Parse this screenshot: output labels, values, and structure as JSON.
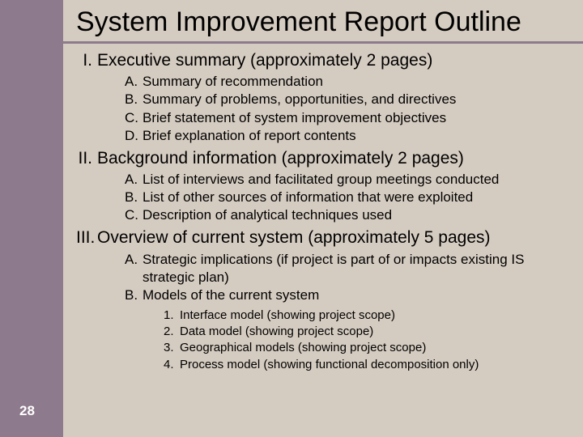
{
  "colors": {
    "sidebar": "#8d7a8c",
    "slide_bg": "#d5ccc1",
    "title_underline": "#8d7a8c",
    "text": "#000000",
    "page_number": "#ffffff"
  },
  "fonts": {
    "title_size": 34,
    "level1_size": 21,
    "level2_size": 17,
    "level3_size": 15
  },
  "page_number": "28",
  "title": "System Improvement Report Outline",
  "outline": [
    {
      "marker": "I.",
      "text": "Executive summary (approximately 2 pages)",
      "children": [
        {
          "marker": "A.",
          "text": "Summary of recommendation"
        },
        {
          "marker": "B.",
          "text": "Summary of problems, opportunities, and directives"
        },
        {
          "marker": "C.",
          "text": "Brief statement of system improvement objectives"
        },
        {
          "marker": "D.",
          "text": "Brief explanation of report contents"
        }
      ]
    },
    {
      "marker": "II.",
      "text": "Background information (approximately 2 pages)",
      "children": [
        {
          "marker": "A.",
          "text": "List of interviews and facilitated group meetings conducted"
        },
        {
          "marker": "B.",
          "text": "List of other sources of information that were exploited"
        },
        {
          "marker": "C.",
          "text": "Description of analytical techniques used"
        }
      ]
    },
    {
      "marker": "III.",
      "text": "Overview of current system (approximately 5 pages)",
      "children": [
        {
          "marker": "A.",
          "text": "Strategic implications (if project is part of or impacts existing IS strategic plan)"
        },
        {
          "marker": "B.",
          "text": "Models of the current system",
          "children": [
            {
              "marker": "1.",
              "text": "Interface model (showing project scope)"
            },
            {
              "marker": "2.",
              "text": "Data model (showing project scope)"
            },
            {
              "marker": "3.",
              "text": "Geographical models (showing project scope)"
            },
            {
              "marker": "4.",
              "text": "Process model (showing functional decomposition only)"
            }
          ]
        }
      ]
    }
  ]
}
